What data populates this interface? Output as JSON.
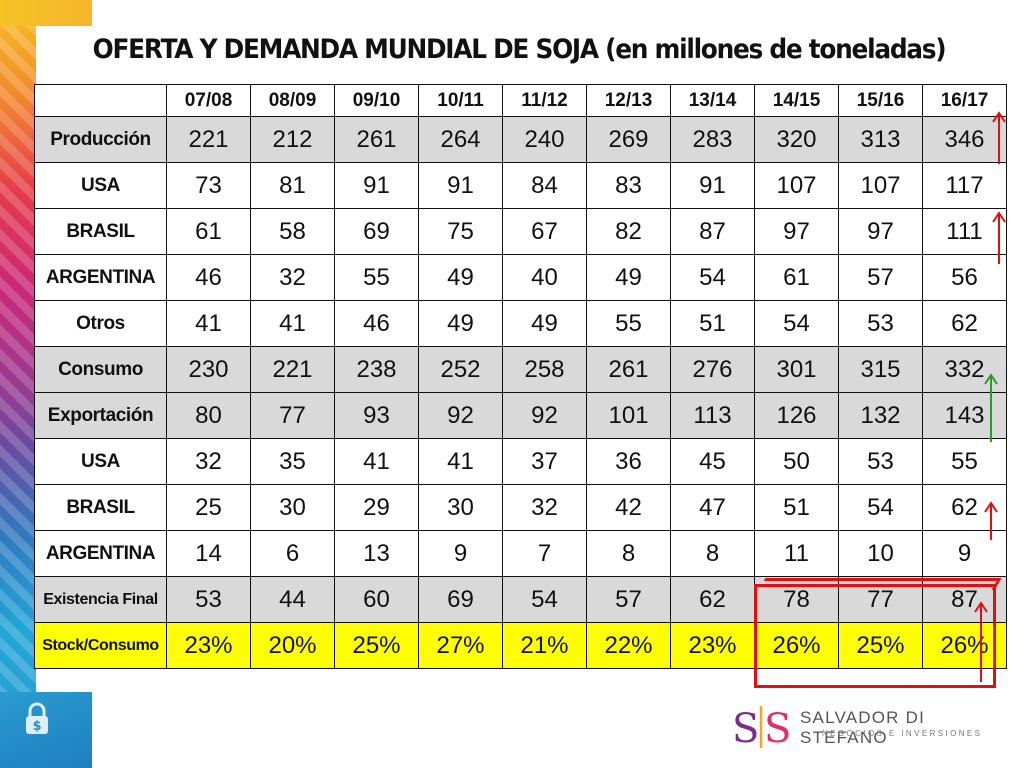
{
  "title": "OFERTA Y DEMANDA MUNDIAL DE SOJA (en millones de toneladas)",
  "table": {
    "headers": [
      "",
      "07/08",
      "08/09",
      "09/10",
      "10/11",
      "11/12",
      "12/13",
      "13/14",
      "14/15",
      "15/16",
      "16/17"
    ],
    "rows": [
      {
        "label": "Producción",
        "values": [
          "221",
          "212",
          "261",
          "264",
          "240",
          "269",
          "283",
          "320",
          "313",
          "346"
        ],
        "style": "gray"
      },
      {
        "label": "USA",
        "values": [
          "73",
          "81",
          "91",
          "91",
          "84",
          "83",
          "91",
          "107",
          "107",
          "117"
        ],
        "style": "white"
      },
      {
        "label": "BRASIL",
        "values": [
          "61",
          "58",
          "69",
          "75",
          "67",
          "82",
          "87",
          "97",
          "97",
          "111"
        ],
        "style": "white"
      },
      {
        "label": "ARGENTINA",
        "values": [
          "46",
          "32",
          "55",
          "49",
          "40",
          "49",
          "54",
          "61",
          "57",
          "56"
        ],
        "style": "white"
      },
      {
        "label": "Otros",
        "values": [
          "41",
          "41",
          "46",
          "49",
          "49",
          "55",
          "51",
          "54",
          "53",
          "62"
        ],
        "style": "white"
      },
      {
        "label": "Consumo",
        "values": [
          "230",
          "221",
          "238",
          "252",
          "258",
          "261",
          "276",
          "301",
          "315",
          "332"
        ],
        "style": "gray"
      },
      {
        "label": "Exportación",
        "values": [
          "80",
          "77",
          "93",
          "92",
          "92",
          "101",
          "113",
          "126",
          "132",
          "143"
        ],
        "style": "gray"
      },
      {
        "label": "USA",
        "values": [
          "32",
          "35",
          "41",
          "41",
          "37",
          "36",
          "45",
          "50",
          "53",
          "55"
        ],
        "style": "white"
      },
      {
        "label": "BRASIL",
        "values": [
          "25",
          "30",
          "29",
          "30",
          "32",
          "42",
          "47",
          "51",
          "54",
          "62"
        ],
        "style": "white"
      },
      {
        "label": "ARGENTINA",
        "values": [
          "14",
          "6",
          "13",
          "9",
          "7",
          "8",
          "8",
          "11",
          "10",
          "9"
        ],
        "style": "white"
      },
      {
        "label": "Existencia Final",
        "values": [
          "53",
          "44",
          "60",
          "69",
          "54",
          "57",
          "62",
          "78",
          "77",
          "87"
        ],
        "style": "gray"
      },
      {
        "label": "Stock/Consumo",
        "values": [
          "23%",
          "20%",
          "25%",
          "27%",
          "21%",
          "22%",
          "23%",
          "26%",
          "25%",
          "26%"
        ],
        "style": "yellow"
      }
    ]
  },
  "logo": {
    "mark": "SIS",
    "name": "SALVADOR DI STEFANO",
    "tagline": "NEGOCIOS E INVERSIONES"
  },
  "colors": {
    "header_gray": "#d9d9d9",
    "stock_yellow": "#ffff00",
    "arrow_red": "#e01010",
    "arrow_green": "#2e9a2e"
  },
  "icons": [
    "lock-dollar-icon",
    "up-arrow-icon"
  ]
}
